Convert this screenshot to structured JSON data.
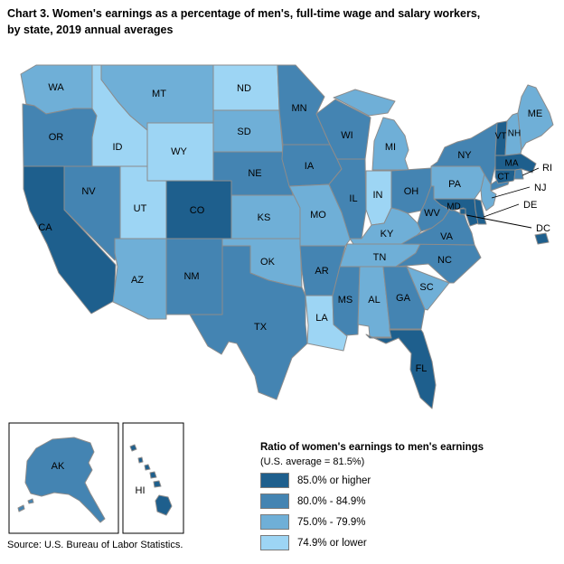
{
  "title_line1": "Chart 3. Women's earnings as a percentage of men's, full-time wage and salary workers,",
  "title_line2": "by state, 2019 annual averages",
  "source": "Source: U.S. Bureau of Labor Statistics.",
  "legend": {
    "title": "Ratio of women's earnings to men's earnings",
    "subtitle": "(U.S. average = 81.5%)",
    "items": [
      {
        "label": "85.0% or higher",
        "color": "#1E5F8D"
      },
      {
        "label": "80.0% - 84.9%",
        "color": "#4484B2"
      },
      {
        "label": "75.0% - 79.9%",
        "color": "#6FAFD7"
      },
      {
        "label": "74.9% or lower",
        "color": "#9DD5F4"
      }
    ]
  },
  "chart_data": {
    "type": "choropleth",
    "geo": "United States, 50 states + DC, with Alaska and Hawaii insets",
    "title": "Chart 3. Women's earnings as a percentage of men's, full-time wage and salary workers, by state, 2019 annual averages",
    "legend_title": "Ratio of women's earnings to men's earnings",
    "us_average": "81.5%",
    "bands": [
      "85.0% or higher",
      "80.0% - 84.9%",
      "75.0% - 79.9%",
      "74.9% or lower"
    ],
    "band_colors": [
      "#1E5F8D",
      "#4484B2",
      "#6FAFD7",
      "#9DD5F4"
    ],
    "callout_states": [
      "RI",
      "NJ",
      "DE",
      "DC"
    ],
    "state_bands": {
      "CA": 0,
      "CO": 0,
      "FL": 0,
      "HI": 0,
      "VT": 0,
      "MA": 0,
      "CT": 0,
      "MD": 0,
      "DE": 0,
      "DC": 0,
      "AK": 1,
      "OR": 1,
      "NV": 1,
      "NM": 1,
      "TX": 1,
      "NE": 1,
      "MN": 1,
      "IA": 1,
      "WI": 1,
      "IL": 1,
      "AR": 1,
      "MS": 1,
      "OH": 1,
      "WV": 1,
      "VA": 1,
      "NC": 1,
      "GA": 1,
      "NY": 1,
      "RI": 1,
      "WA": 2,
      "MT": 2,
      "SD": 2,
      "KS": 2,
      "OK": 2,
      "MO": 2,
      "AZ": 2,
      "MI": 2,
      "KY": 2,
      "TN": 2,
      "AL": 2,
      "SC": 2,
      "PA": 2,
      "NJ": 2,
      "ME": 2,
      "NH": 2,
      "ID": 3,
      "WY": 3,
      "UT": 3,
      "ND": 3,
      "IN": 3,
      "LA": 3
    }
  }
}
